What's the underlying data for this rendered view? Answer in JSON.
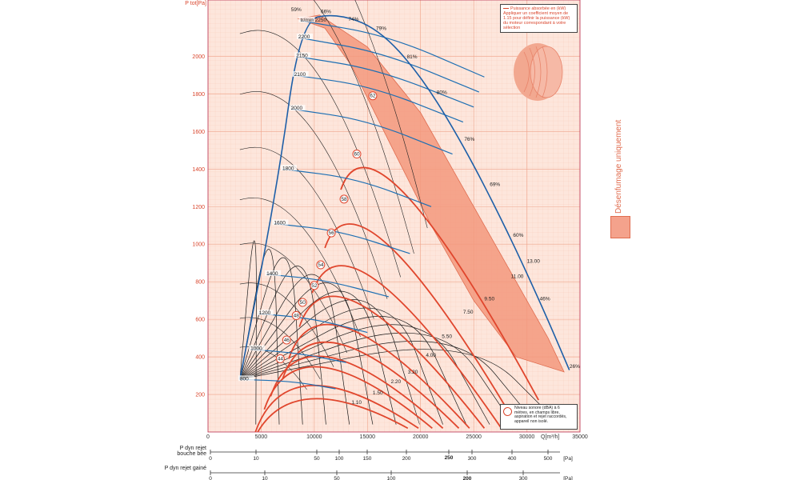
{
  "chart_data": {
    "type": "line",
    "title": "",
    "ylabel": "P tot[Pa]",
    "xlabel": "Q[m³/h]",
    "xlim": [
      0,
      35000
    ],
    "ylim": [
      0,
      2300
    ],
    "x_ticks": [
      0,
      5000,
      10000,
      15000,
      20000,
      25000,
      30000,
      35000
    ],
    "y_ticks": [
      200,
      400,
      600,
      800,
      1000,
      1200,
      1400,
      1600,
      1800,
      2000
    ],
    "speed_curves": {
      "unit": "tr/min",
      "labels": [
        "800",
        "1000",
        "1200",
        "1400",
        "1600",
        "1800",
        "2000",
        "2100",
        "2150",
        "2200",
        "2250"
      ],
      "values": [
        800,
        1000,
        1200,
        1400,
        1600,
        1800,
        2000,
        2100,
        2150,
        2200,
        2250
      ],
      "series": [
        {
          "name": "800",
          "points": [
            [
              3000,
              280
            ],
            [
              8000,
              270
            ],
            [
              12000,
              230
            ]
          ]
        },
        {
          "name": "1000",
          "points": [
            [
              4000,
              440
            ],
            [
              8500,
              420
            ],
            [
              13000,
              370
            ]
          ]
        },
        {
          "name": "1200",
          "points": [
            [
              4800,
              630
            ],
            [
              9800,
              605
            ],
            [
              15000,
              530
            ]
          ]
        },
        {
          "name": "1400",
          "points": [
            [
              5500,
              840
            ],
            [
              11000,
              810
            ],
            [
              17000,
              720
            ]
          ]
        },
        {
          "name": "1600",
          "points": [
            [
              6200,
              1110
            ],
            [
              12500,
              1070
            ],
            [
              19000,
              950
            ]
          ]
        },
        {
          "name": "1800",
          "points": [
            [
              7000,
              1400
            ],
            [
              14000,
              1350
            ],
            [
              21000,
              1200
            ]
          ]
        },
        {
          "name": "2000",
          "points": [
            [
              7800,
              1720
            ],
            [
              15000,
              1660
            ],
            [
              23000,
              1480
            ]
          ]
        },
        {
          "name": "2100",
          "points": [
            [
              8100,
              1900
            ],
            [
              15500,
              1840
            ],
            [
              24000,
              1650
            ]
          ]
        },
        {
          "name": "2150",
          "points": [
            [
              8300,
              2000
            ],
            [
              16000,
              1930
            ],
            [
              25000,
              1730
            ]
          ]
        },
        {
          "name": "2200",
          "points": [
            [
              8500,
              2100
            ],
            [
              16500,
              2020
            ],
            [
              25500,
              1810
            ]
          ]
        },
        {
          "name": "2250",
          "points": [
            [
              8700,
              2190
            ],
            [
              17000,
              2110
            ],
            [
              26000,
              1890
            ]
          ]
        }
      ]
    },
    "efficiency_labels": [
      "59%",
      "66%",
      "74%",
      "79%",
      "81%",
      "80%",
      "76%",
      "69%",
      "60%",
      "46%",
      "26%"
    ],
    "efficiency_points": [
      [
        8300,
        2240
      ],
      [
        11100,
        2230
      ],
      [
        13700,
        2190
      ],
      [
        16300,
        2140
      ],
      [
        19200,
        1990
      ],
      [
        22000,
        1800
      ],
      [
        24600,
        1550
      ],
      [
        27000,
        1310
      ],
      [
        29200,
        1040
      ],
      [
        31700,
        700
      ],
      [
        34500,
        340
      ]
    ],
    "operating_envelope": [
      [
        8500,
        2200
      ],
      [
        10500,
        2220
      ],
      [
        15000,
        2050
      ],
      [
        20000,
        1700
      ],
      [
        24000,
        1300
      ],
      [
        28000,
        900
      ],
      [
        32000,
        500
      ],
      [
        33500,
        320
      ],
      [
        29000,
        400
      ],
      [
        25000,
        700
      ],
      [
        21000,
        1100
      ],
      [
        17000,
        1550
      ],
      [
        13500,
        1950
      ],
      [
        11000,
        2150
      ]
    ],
    "noise_levels_dBA": [
      "44",
      "46",
      "48",
      "50",
      "52",
      "54",
      "56",
      "58",
      "60",
      "62"
    ],
    "noise_label_points": [
      [
        6800,
        390
      ],
      [
        7400,
        490
      ],
      [
        8300,
        620
      ],
      [
        8900,
        690
      ],
      [
        10000,
        780
      ],
      [
        10600,
        890
      ],
      [
        11600,
        1060
      ],
      [
        12800,
        1240
      ],
      [
        14000,
        1480
      ],
      [
        15500,
        1790
      ]
    ],
    "power_kW_labels": [
      "1.10",
      "1.50",
      "2.20",
      "3.20",
      "4.00",
      "5.50",
      "7.50",
      "9.50",
      "11.00",
      "13.00"
    ],
    "power_label_points": [
      [
        13500,
        150
      ],
      [
        15500,
        200
      ],
      [
        17200,
        260
      ],
      [
        18800,
        310
      ],
      [
        20500,
        400
      ],
      [
        22000,
        500
      ],
      [
        24000,
        630
      ],
      [
        26000,
        700
      ],
      [
        28500,
        820
      ],
      [
        30000,
        900
      ]
    ],
    "power_note": "Puissance absorbée en (kW) Appliquer un coefficient moyen de 1.15 pour définir la puissance (kW) du moteur correspondant à votre sélection",
    "noise_note": "Niveau sonore (dBA) à 6 mètres, en champs libre, aspiration et rejet raccordés, appareil non isolé.",
    "side_label": "Désenfumage uniquement",
    "scale_discharge": {
      "label": "P dyn rejet bouche bée",
      "ticks": [
        "0",
        "10",
        "50",
        "100",
        "150",
        "200",
        "250",
        "300",
        "400",
        "500"
      ],
      "highlight": "250",
      "unit": "[Pa]"
    },
    "scale_ducted": {
      "label": "P dyn rejet gainé",
      "ticks": [
        "0",
        "10",
        "50",
        "100",
        "200",
        "300"
      ],
      "highlight": "200",
      "unit": "[Pa]"
    }
  },
  "colors": {
    "grid_bg": "#fde4da",
    "grid_minor": "#f7c7b6",
    "grid_major": "#f0a58c",
    "speed_curve": "#1d6fb3",
    "noise_curve": "#e0462d",
    "envelope_fill": "#f08b6e",
    "accent": "#d9442b"
  }
}
